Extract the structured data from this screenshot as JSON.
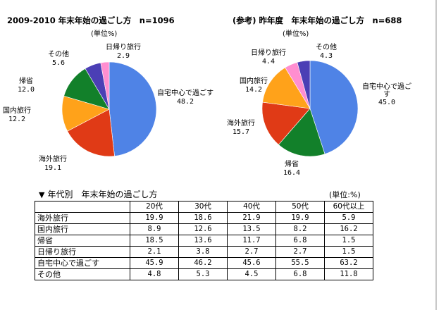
{
  "charts": {
    "left": {
      "title": "2009-2010 年末年始の過ごし方　n=1096",
      "unit": "(単位%)",
      "labels": [
        {
          "name": "自宅中心で過ごす",
          "value": "48.2"
        },
        {
          "name": "海外旅行",
          "value": "19.1"
        },
        {
          "name": "国内旅行",
          "value": "12.2"
        },
        {
          "name": "帰省",
          "value": "12.0"
        },
        {
          "name": "その他",
          "value": "5.6"
        },
        {
          "name": "日帰り旅行",
          "value": "2.9"
        }
      ]
    },
    "right": {
      "title": "(参考) 昨年度　年末年始の過ごし方　n=688",
      "unit": "(単位%)",
      "labels": [
        {
          "name": "自宅中心で過ごす",
          "value": "45.0"
        },
        {
          "name": "帰省",
          "value": "16.4"
        },
        {
          "name": "海外旅行",
          "value": "15.7"
        },
        {
          "name": "国内旅行",
          "value": "14.2"
        },
        {
          "name": "日帰り旅行",
          "value": "4.4"
        },
        {
          "name": "その他",
          "value": "4.3"
        }
      ]
    }
  },
  "colors": {
    "自宅中心で過ごす": "#4f83e6",
    "海外旅行": "#e03a16",
    "国内旅行": "#ffa21a",
    "帰省": "#12802a",
    "その他": "#4b3fb5",
    "日帰り旅行": "#ff8ed0"
  },
  "table": {
    "title": "年代別　年末年始の過ごし方",
    "unit": "(単位:%)",
    "headers": [
      "",
      "20代",
      "30代",
      "40代",
      "50代",
      "60代以上"
    ],
    "rows": [
      {
        "label": "海外旅行",
        "values": [
          "19.9",
          "18.6",
          "21.9",
          "19.9",
          "5.9"
        ]
      },
      {
        "label": "国内旅行",
        "values": [
          "8.9",
          "12.6",
          "13.5",
          "8.2",
          "16.2"
        ]
      },
      {
        "label": "帰省",
        "values": [
          "18.5",
          "13.6",
          "11.7",
          "6.8",
          "1.5"
        ]
      },
      {
        "label": "日帰り旅行",
        "values": [
          "2.1",
          "3.8",
          "2.7",
          "2.7",
          "1.5"
        ]
      },
      {
        "label": "自宅中心で過ごす",
        "values": [
          "45.9",
          "46.2",
          "45.6",
          "55.5",
          "63.2"
        ]
      },
      {
        "label": "その他",
        "values": [
          "4.8",
          "5.3",
          "4.5",
          "6.8",
          "11.8"
        ]
      }
    ]
  },
  "chart_data": [
    {
      "type": "pie",
      "title": "2009-2010 年末年始の過ごし方　n=1096",
      "unit": "(単位%)",
      "categories": [
        "自宅中心で過ごす",
        "海外旅行",
        "国内旅行",
        "帰省",
        "その他",
        "日帰り旅行"
      ],
      "values": [
        48.2,
        19.1,
        12.2,
        12.0,
        5.6,
        2.9
      ]
    },
    {
      "type": "pie",
      "title": "(参考) 昨年度　年末年始の過ごし方　n=688",
      "unit": "(単位%)",
      "categories": [
        "自宅中心で過ごす",
        "帰省",
        "海外旅行",
        "国内旅行",
        "日帰り旅行",
        "その他"
      ],
      "values": [
        45.0,
        16.4,
        15.7,
        14.2,
        4.4,
        4.3
      ]
    },
    {
      "type": "table",
      "title": "年代別　年末年始の過ごし方",
      "unit": "(単位:%)",
      "columns": [
        "20代",
        "30代",
        "40代",
        "50代",
        "60代以上"
      ],
      "rows": [
        {
          "name": "海外旅行",
          "values": [
            19.9,
            18.6,
            21.9,
            19.9,
            5.9
          ]
        },
        {
          "name": "国内旅行",
          "values": [
            8.9,
            12.6,
            13.5,
            8.2,
            16.2
          ]
        },
        {
          "name": "帰省",
          "values": [
            18.5,
            13.6,
            11.7,
            6.8,
            1.5
          ]
        },
        {
          "name": "日帰り旅行",
          "values": [
            2.1,
            3.8,
            2.7,
            2.7,
            1.5
          ]
        },
        {
          "name": "自宅中心で過ごす",
          "values": [
            45.9,
            46.2,
            45.6,
            55.5,
            63.2
          ]
        },
        {
          "name": "その他",
          "values": [
            4.8,
            5.3,
            4.5,
            6.8,
            11.8
          ]
        }
      ]
    }
  ]
}
